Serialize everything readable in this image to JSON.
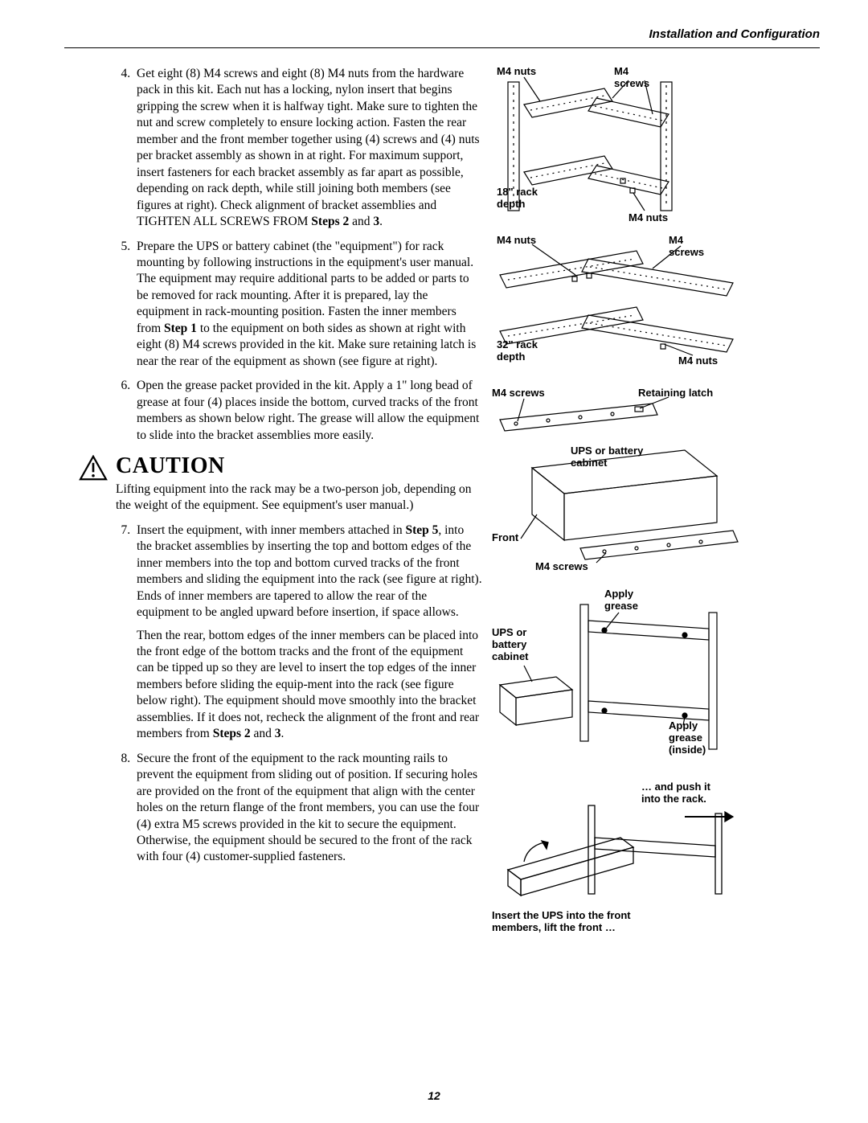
{
  "header": {
    "title": "Installation and Configuration"
  },
  "page_number": "12",
  "caution": {
    "title": "CAUTION",
    "body": "Lifting equipment into the rack may be a two-person job, depending on the weight of the equipment. See equipment's user manual.)"
  },
  "steps": {
    "start": 4,
    "items": [
      {
        "html": "Get eight (8) M4 screws and eight (8) M4 nuts from the hardware pack in this kit. Each nut has a locking, nylon insert that begins gripping the screw when it is halfway tight. Make sure to tighten the nut and screw completely to ensure locking action. Fasten the rear member and the front member together using (4) screws and (4) nuts per bracket assembly as shown in at right. For maximum support, insert fasteners for each bracket assembly as far apart as possible, depending on rack depth, while still joining both members (see figures at right). Check alignment of bracket assemblies and TIGHTEN ALL SCREWS FROM <span class=\"bold\">Steps 2</span> and <span class=\"bold\">3</span>."
      },
      {
        "html": "Prepare the UPS or battery cabinet (the \"equipment\") for rack mounting by following instructions in the equipment's user manual. The equipment may require additional parts to be added or parts to be removed for rack mounting. After it is prepared, lay the equipment in rack-mounting position. Fasten the inner members from <span class=\"bold\">Step 1</span> to the equipment on both sides as shown at right with eight (8) M4 screws provided in the kit. Make sure retaining latch is near the rear of the equipment as shown (see figure at right)."
      },
      {
        "html": "Open the grease packet provided in the kit. Apply a 1\" long bead of grease at four (4) places inside the bottom, curved tracks of the front members as shown below right. The grease will allow the equipment to slide into the bracket assemblies more easily."
      },
      {
        "caution_after": true,
        "html": "Insert the equipment, with inner members attached in <span class=\"bold\">Step 5</span>, into the bracket assemblies by inserting the top and bottom edges of the inner members into the top and bottom curved tracks of the front members and sliding the equipment into the rack (see figure at right). Ends of inner members are tapered to allow the rear of the equipment to be angled upward before insertion, if space allows.",
        "para2": "Then the rear, bottom edges of the inner members can be placed into the front edge of the bottom tracks and the front of the equipment can be tipped up so they are level to insert the top edges of the inner members before sliding the equip-ment into the rack (see figure below right). The equipment should move smoothly into the bracket assemblies. If it does not, recheck the alignment of the front and rear members from <span class=\"bold\">Steps 2</span> and <span class=\"bold\">3</span>."
      },
      {
        "html": "Secure the front of the equipment to the rack mounting rails to prevent the equipment from sliding out of position. If securing holes are provided on the front of the equipment that align with the center holes on the return flange of the front members, you can use the four (4) extra M5 screws provided in the kit to secure the equipment. Otherwise, the equipment should be secured to the front of the rack with four (4) customer-supplied fasteners."
      }
    ]
  },
  "figures": {
    "f1": {
      "m4_nuts_tl": "M4 nuts",
      "m4_screws_tr": "M4\nscrews",
      "rack18": "18\" rack\ndepth",
      "m4_nuts_br": "M4 nuts"
    },
    "f2": {
      "m4_nuts_tl": "M4 nuts",
      "m4_screws_tr": "M4\nscrews",
      "rack32": "32\" rack\ndepth",
      "m4_nuts_br": "M4 nuts"
    },
    "f3": {
      "m4_screws_l": "M4 screws",
      "retaining": "Retaining latch",
      "ups": "UPS or battery\ncabinet",
      "front": "Front",
      "m4_screws_b": "M4 screws"
    },
    "f4": {
      "apply_grease_t": "Apply\ngrease",
      "ups": "UPS or\nbattery\ncabinet",
      "apply_grease_b": "Apply\ngrease\n(inside)"
    },
    "f5": {
      "push": "… and push it\ninto the rack.",
      "insert": "Insert the UPS into the front\nmembers, lift the front …"
    }
  },
  "colors": {
    "text": "#000000",
    "bg": "#ffffff",
    "stroke": "#000000"
  }
}
